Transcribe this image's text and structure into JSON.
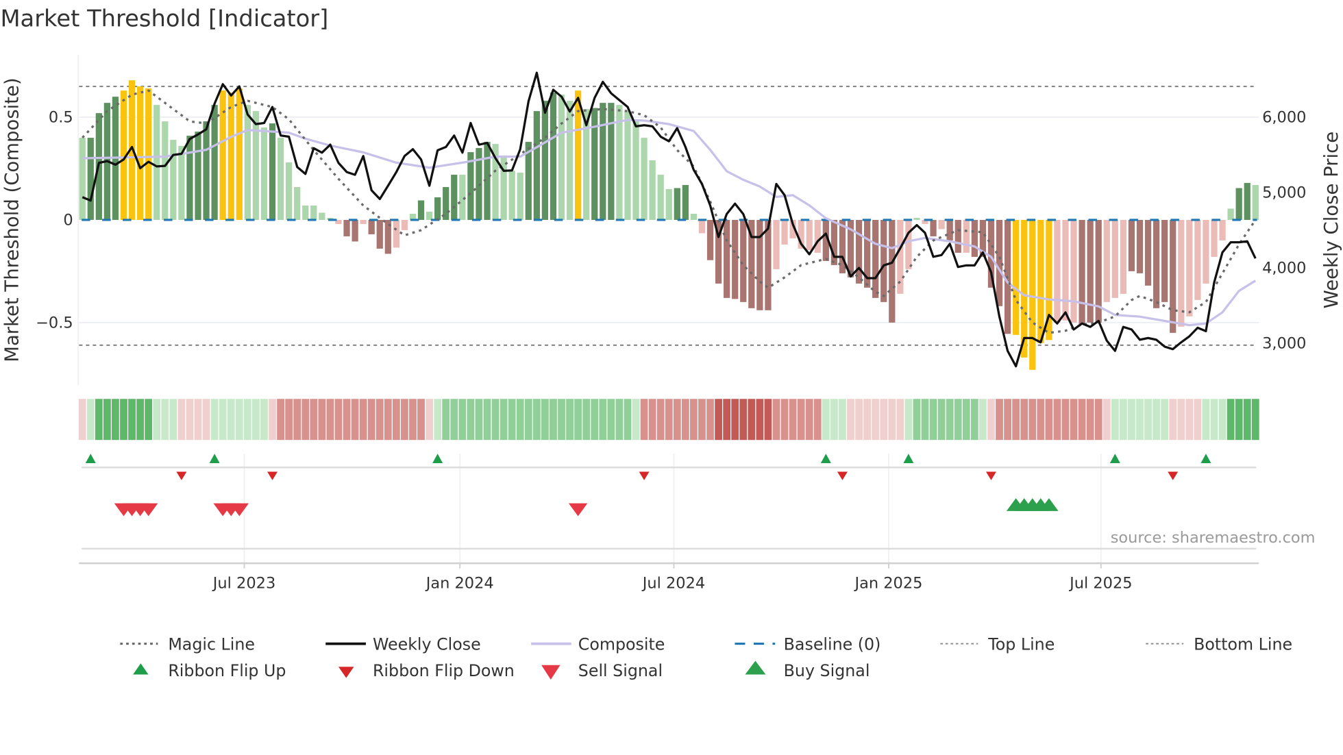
{
  "title": "Market Threshold [Indicator]",
  "source": "source: sharemaestro.com",
  "colors": {
    "bar_strong_up": "#5e9160",
    "bar_weak_up": "#acd6ab",
    "bar_strong_down": "#a87571",
    "bar_weak_down": "#ebbcb7",
    "bar_extreme": "#f9c30f",
    "weekly_close": "#111111",
    "composite": "#c7c1ea",
    "magic_line": "#6a6a6a",
    "baseline": "#1f77b4",
    "threshold_lines": "#777777",
    "ribbon_scale": {
      "-3": "#c45a55",
      "-2": "#d9918e",
      "-1": "#f0d0cf",
      "1": "#c8e8ca",
      "2": "#91cf98",
      "3": "#5db86a"
    },
    "flip_up": "#1e9e4a",
    "flip_down": "#d62728",
    "sell": "#e63946",
    "buy": "#2ca04c"
  },
  "chart_data": {
    "type": "bar",
    "title": "Market Threshold [Indicator]",
    "ylabel_left": "Market Threshold (Composite)",
    "ylabel_right": "Weekly Close Price",
    "xlim": [
      -0.4,
      142.4
    ],
    "ylim_left": [
      -0.805,
      0.8125
    ],
    "ylim_right": [
      2443,
      6852
    ],
    "y_ticks_left": [
      {
        "value": 0.5,
        "label": "0.5"
      },
      {
        "value": 0,
        "label": "0"
      },
      {
        "value": -0.5,
        "label": "−0.5"
      }
    ],
    "y_ticks_right": [
      {
        "value": 6000,
        "label": "6,000"
      },
      {
        "value": 5000,
        "label": "5,000"
      },
      {
        "value": 4000,
        "label": "4,000"
      },
      {
        "value": 3000,
        "label": "3,000"
      }
    ],
    "x_ticks": [
      {
        "week": 19.6,
        "label": "Jul 2023"
      },
      {
        "week": 45.7,
        "label": "Jan 2024"
      },
      {
        "week": 71.6,
        "label": "Jul 2024"
      },
      {
        "week": 97.6,
        "label": "Jan 2025"
      },
      {
        "week": 123.3,
        "label": "Jul 2025"
      }
    ],
    "grid": "horizontal",
    "top_line": 0.65,
    "bottom_line": -0.61,
    "baseline": 0,
    "bars": {
      "values": [
        0.4,
        0.4,
        0.52,
        0.57,
        0.6,
        0.63,
        0.68,
        0.65,
        0.64,
        0.56,
        0.48,
        0.39,
        0.36,
        0.41,
        0.43,
        0.48,
        0.56,
        0.63,
        0.62,
        0.64,
        0.56,
        0.53,
        0.45,
        0.47,
        0.4,
        0.28,
        0.16,
        0.07,
        0.07,
        0.035,
        0.01,
        -0.02,
        -0.08,
        -0.105,
        -0.02,
        -0.07,
        -0.14,
        -0.165,
        -0.135,
        -0.05,
        0.03,
        0.095,
        0.04,
        0.11,
        0.16,
        0.22,
        0.22,
        0.33,
        0.35,
        0.38,
        0.37,
        0.31,
        0.24,
        0.23,
        0.38,
        0.53,
        0.58,
        0.62,
        0.61,
        0.58,
        0.63,
        0.54,
        0.545,
        0.57,
        0.57,
        0.56,
        0.53,
        0.48,
        0.4,
        0.29,
        0.22,
        0.15,
        0.155,
        0.17,
        0.03,
        -0.065,
        -0.196,
        -0.31,
        -0.38,
        -0.385,
        -0.4,
        -0.43,
        -0.44,
        -0.44,
        -0.24,
        -0.12,
        -0.09,
        -0.14,
        -0.147,
        -0.16,
        -0.2,
        -0.22,
        -0.26,
        -0.28,
        -0.31,
        -0.33,
        -0.38,
        -0.4,
        -0.5,
        -0.36,
        -0.24,
        0.01,
        -0.02,
        -0.08,
        -0.045,
        -0.1,
        -0.16,
        -0.16,
        -0.18,
        -0.18,
        -0.33,
        -0.42,
        -0.555,
        -0.56,
        -0.67,
        -0.73,
        -0.6,
        -0.585,
        -0.5,
        -0.49,
        -0.5,
        -0.51,
        -0.5,
        -0.5,
        -0.4,
        -0.38,
        -0.36,
        -0.25,
        -0.26,
        -0.32,
        -0.43,
        -0.4,
        -0.55,
        -0.52,
        -0.47,
        -0.39,
        -0.31,
        -0.18,
        -0.1,
        0.055,
        0.155,
        0.18,
        0.17
      ],
      "class": [
        "g",
        "G",
        "G",
        "G",
        "G",
        "Y",
        "Y",
        "Y",
        "Y",
        "g",
        "g",
        "g",
        "g",
        "G",
        "G",
        "G",
        "G",
        "Y",
        "Y",
        "Y",
        "g",
        "g",
        "g",
        "G",
        "g",
        "g",
        "g",
        "g",
        "g",
        "g",
        "g",
        "r",
        "R",
        "R",
        "r",
        "R",
        "R",
        "R",
        "r",
        "r",
        "g",
        "G",
        "g",
        "G",
        "G",
        "G",
        "g",
        "G",
        "G",
        "G",
        "g",
        "g",
        "g",
        "g",
        "G",
        "G",
        "G",
        "G",
        "g",
        "g",
        "Y",
        "g",
        "G",
        "G",
        "G",
        "g",
        "g",
        "g",
        "g",
        "g",
        "g",
        "g",
        "G",
        "G",
        "g",
        "r",
        "R",
        "R",
        "R",
        "R",
        "R",
        "R",
        "R",
        "R",
        "r",
        "r",
        "r",
        "r",
        "r",
        "r",
        "R",
        "R",
        "R",
        "R",
        "R",
        "R",
        "R",
        "R",
        "R",
        "r",
        "r",
        "g",
        "r",
        "R",
        "r",
        "R",
        "R",
        "r",
        "R",
        "R",
        "R",
        "R",
        "R",
        "Y",
        "Y",
        "Y",
        "Y",
        "Y",
        "r",
        "r",
        "r",
        "R",
        "R",
        "R",
        "r",
        "r",
        "r",
        "R",
        "R",
        "R",
        "R",
        "R",
        "R",
        "r",
        "r",
        "r",
        "r",
        "r",
        "r",
        "g",
        "G",
        "G",
        "g"
      ]
    },
    "weekly_close": [
      4940,
      4894,
      5394,
      5418,
      5370,
      5440,
      5606,
      5324,
      5409,
      5348,
      5354,
      5500,
      5515,
      5712,
      5773,
      5840,
      6180,
      6440,
      6288,
      6410,
      6036,
      5909,
      5924,
      6136,
      5758,
      5742,
      5339,
      5248,
      5590,
      5530,
      5636,
      5394,
      5273,
      5236,
      5485,
      5030,
      4915,
      5091,
      5273,
      5485,
      5576,
      5440,
      5091,
      5561,
      5606,
      5758,
      5530,
      5924,
      5636,
      5660,
      5455,
      5288,
      5294,
      5576,
      6212,
      6591,
      6060,
      6364,
      6273,
      6076,
      6258,
      5894,
      6258,
      6470,
      6318,
      6227,
      6136,
      5879,
      5894,
      5879,
      5742,
      5682,
      5855,
      5606,
      5303,
      5114,
      4830,
      4410,
      4716,
      4853,
      4716,
      4410,
      4410,
      4523,
      5114,
      4966,
      4580,
      4320,
      4182,
      4353,
      4455,
      4148,
      4148,
      3887,
      4000,
      3864,
      3864,
      4034,
      4068,
      4262,
      4466,
      4568,
      4466,
      4148,
      4170,
      4320,
      4012,
      4034,
      4034,
      4205,
      3944,
      3353,
      2899,
      2694,
      3069,
      3069,
      3012,
      3376,
      3262,
      3410,
      3183,
      3262,
      3217,
      3296,
      3035,
      2899,
      3217,
      3183,
      3046,
      3069,
      3046,
      2955,
      2921,
      3012,
      3092,
      3206,
      3160,
      3808,
      4205,
      4341,
      4341,
      4353,
      4126
    ],
    "composite": [
      [
        0,
        5455
      ],
      [
        10,
        5477
      ],
      [
        15,
        5568
      ],
      [
        18,
        5740
      ],
      [
        20,
        5830
      ],
      [
        25,
        5795
      ],
      [
        27,
        5716
      ],
      [
        30,
        5625
      ],
      [
        34,
        5534
      ],
      [
        38,
        5398
      ],
      [
        42,
        5330
      ],
      [
        46,
        5398
      ],
      [
        50,
        5477
      ],
      [
        53,
        5477
      ],
      [
        55,
        5602
      ],
      [
        58,
        5795
      ],
      [
        62,
        5875
      ],
      [
        66,
        5966
      ],
      [
        68,
        5955
      ],
      [
        71,
        5909
      ],
      [
        74,
        5818
      ],
      [
        76,
        5568
      ],
      [
        78,
        5284
      ],
      [
        80,
        5170
      ],
      [
        82,
        5080
      ],
      [
        84,
        4943
      ],
      [
        86,
        4966
      ],
      [
        88,
        4830
      ],
      [
        90,
        4660
      ],
      [
        93,
        4512
      ],
      [
        96,
        4320
      ],
      [
        98,
        4262
      ],
      [
        100,
        4353
      ],
      [
        102,
        4398
      ],
      [
        105,
        4353
      ],
      [
        108,
        4285
      ],
      [
        110,
        4148
      ],
      [
        112,
        3807
      ],
      [
        114,
        3637
      ],
      [
        117,
        3580
      ],
      [
        120,
        3557
      ],
      [
        123,
        3490
      ],
      [
        125,
        3376
      ],
      [
        128,
        3353
      ],
      [
        131,
        3296
      ],
      [
        134,
        3240
      ],
      [
        136,
        3262
      ],
      [
        138,
        3410
      ],
      [
        140,
        3694
      ],
      [
        142,
        3830
      ]
    ],
    "magic_line": [
      [
        0,
        0.4
      ],
      [
        3,
        0.53
      ],
      [
        6,
        0.61
      ],
      [
        8,
        0.63
      ],
      [
        10,
        0.57
      ],
      [
        13,
        0.48
      ],
      [
        15,
        0.47
      ],
      [
        18,
        0.55
      ],
      [
        20,
        0.58
      ],
      [
        23,
        0.55
      ],
      [
        25,
        0.49
      ],
      [
        28,
        0.34
      ],
      [
        31,
        0.2
      ],
      [
        34,
        0.07
      ],
      [
        37,
        -0.02
      ],
      [
        39,
        -0.075
      ],
      [
        41,
        -0.05
      ],
      [
        44,
        0.03
      ],
      [
        47,
        0.13
      ],
      [
        50,
        0.24
      ],
      [
        53,
        0.32
      ],
      [
        56,
        0.4
      ],
      [
        58,
        0.47
      ],
      [
        60,
        0.53
      ],
      [
        63,
        0.54
      ],
      [
        66,
        0.53
      ],
      [
        68,
        0.51
      ],
      [
        70,
        0.45
      ],
      [
        72,
        0.34
      ],
      [
        74,
        0.26
      ],
      [
        76,
        0.09
      ],
      [
        78,
        -0.1
      ],
      [
        80,
        -0.22
      ],
      [
        82,
        -0.3
      ],
      [
        83,
        -0.33
      ],
      [
        85,
        -0.28
      ],
      [
        87,
        -0.22
      ],
      [
        90,
        -0.19
      ],
      [
        92,
        -0.22
      ],
      [
        94,
        -0.28
      ],
      [
        96,
        -0.35
      ],
      [
        97,
        -0.37
      ],
      [
        99,
        -0.3
      ],
      [
        101,
        -0.18
      ],
      [
        103,
        -0.1
      ],
      [
        106,
        -0.05
      ],
      [
        109,
        -0.06
      ],
      [
        111,
        -0.18
      ],
      [
        113,
        -0.39
      ],
      [
        115,
        -0.5
      ],
      [
        117,
        -0.55
      ],
      [
        119,
        -0.54
      ],
      [
        121,
        -0.51
      ],
      [
        123,
        -0.5
      ],
      [
        125,
        -0.47
      ],
      [
        127,
        -0.39
      ],
      [
        128,
        -0.37
      ],
      [
        130,
        -0.4
      ],
      [
        132,
        -0.44
      ],
      [
        134,
        -0.45
      ],
      [
        136,
        -0.4
      ],
      [
        138,
        -0.26
      ],
      [
        140,
        -0.12
      ],
      [
        142,
        0.0
      ]
    ],
    "ribbon": [
      -1,
      1,
      3,
      3,
      3,
      3,
      3,
      3,
      3,
      1,
      1,
      1,
      -1,
      -1,
      -1,
      -1,
      1,
      1,
      1,
      1,
      1,
      1,
      1,
      -1,
      -2,
      -2,
      -2,
      -2,
      -2,
      -2,
      -2,
      -2,
      -2,
      -2,
      -2,
      -2,
      -2,
      -2,
      -2,
      -2,
      -2,
      -2,
      -1,
      1,
      2,
      2,
      2,
      2,
      2,
      2,
      2,
      2,
      2,
      2,
      2,
      2,
      2,
      2,
      2,
      2,
      2,
      2,
      2,
      2,
      2,
      2,
      2,
      1,
      -2,
      -2,
      -2,
      -2,
      -2,
      -2,
      -2,
      -2,
      -2,
      -3,
      -3,
      -3,
      -3,
      -3,
      -3,
      -3,
      -2,
      -2,
      -2,
      -2,
      -2,
      -2,
      1,
      1,
      1,
      -1,
      -1,
      -1,
      -1,
      -1,
      -1,
      -1,
      1,
      2,
      2,
      2,
      2,
      2,
      2,
      2,
      2,
      1,
      -1,
      -2,
      -2,
      -2,
      -2,
      -2,
      -2,
      -2,
      -2,
      -2,
      -2,
      -2,
      -2,
      -2,
      -1,
      1,
      1,
      1,
      1,
      1,
      1,
      1,
      -1,
      -1,
      -1,
      -1,
      1,
      1,
      1,
      3,
      3,
      3,
      3
    ],
    "signals": {
      "ribbon_flip_up": [
        1,
        16,
        43,
        90,
        100,
        125,
        136
      ],
      "ribbon_flip_down": [
        12,
        23,
        68,
        92,
        110,
        132
      ],
      "sell": [
        5,
        6,
        7,
        8,
        17,
        18,
        19,
        60
      ],
      "buy": [
        113,
        114,
        115,
        116,
        117
      ]
    }
  },
  "legend": {
    "items": [
      {
        "label": "Magic Line",
        "symbol": "dotted-line"
      },
      {
        "label": "Weekly Close",
        "symbol": "solid-line"
      },
      {
        "label": "Composite",
        "symbol": "solid-line"
      },
      {
        "label": "Baseline (0)",
        "symbol": "dashed-line"
      },
      {
        "label": "Top Line",
        "symbol": "dotted-line"
      },
      {
        "label": "Bottom Line",
        "symbol": "dotted-line"
      },
      {
        "label": "Ribbon Flip Up",
        "symbol": "triangle-up"
      },
      {
        "label": "Ribbon Flip Down",
        "symbol": "triangle-down"
      },
      {
        "label": "Sell Signal",
        "symbol": "triangle-down"
      },
      {
        "label": "Buy Signal",
        "symbol": "triangle-up"
      }
    ]
  }
}
